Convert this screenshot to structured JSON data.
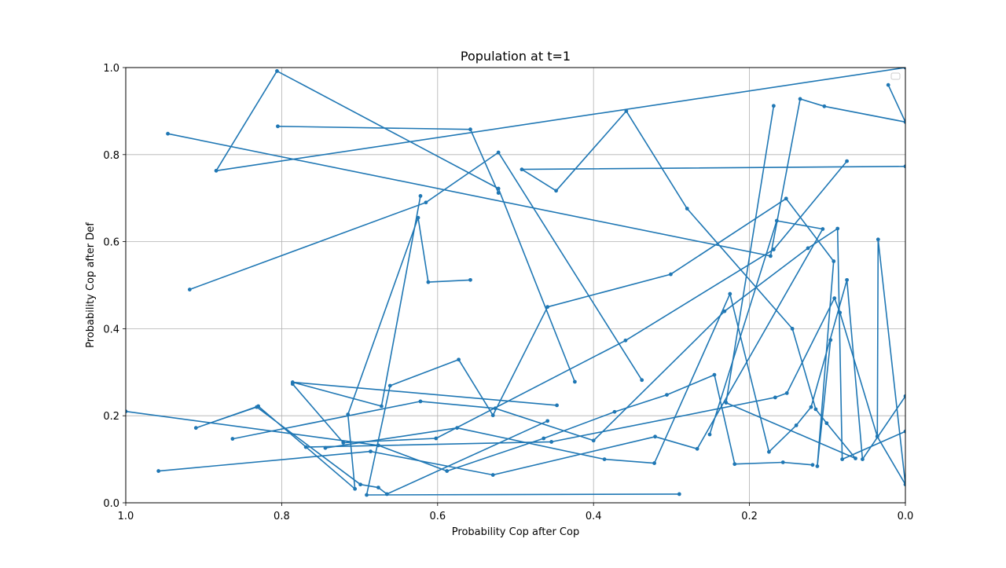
{
  "chart_data": {
    "type": "line",
    "title": "Population at t=1",
    "xlabel": "Probability Cop after Cop",
    "ylabel": "Probability Cop after Def",
    "xlim": [
      1.0,
      0.0
    ],
    "ylim": [
      0.0,
      1.0
    ],
    "x_inverted": true,
    "xticks": [
      1.0,
      0.8,
      0.6,
      0.4,
      0.2,
      0.0
    ],
    "yticks": [
      0.0,
      0.2,
      0.4,
      0.6,
      0.8,
      1.0
    ],
    "xtick_labels": [
      "1.0",
      "0.8",
      "0.6",
      "0.4",
      "0.2",
      "0.0"
    ],
    "ytick_labels": [
      "0.0",
      "0.2",
      "0.4",
      "0.6",
      "0.8",
      "1.0"
    ],
    "grid": true,
    "legend": "upper right (empty)",
    "series_color": "#1f77b4",
    "marker": "dot",
    "series": [
      {
        "x": [
          0.805,
          0.558,
          0.522
        ],
        "y": [
          0.865,
          0.858,
          0.712
        ]
      },
      {
        "x": [
          0.946,
          0.173,
          0.135,
          0.104,
          0.0,
          0.022
        ],
        "y": [
          0.848,
          0.567,
          0.928,
          0.911,
          0.875,
          0.96
        ]
      },
      {
        "x": [
          0.0,
          0.884,
          0.806,
          0.522,
          0.424
        ],
        "y": [
          1.0,
          0.763,
          0.992,
          0.722,
          0.278
        ]
      },
      {
        "x": [
          0.0,
          0.492,
          0.448,
          0.358,
          0.28,
          0.145,
          0.115,
          0.101,
          0.064,
          0.23,
          0.169
        ],
        "y": [
          0.773,
          0.766,
          0.717,
          0.9,
          0.676,
          0.4,
          0.215,
          0.183,
          0.102,
          0.23,
          0.912
        ]
      },
      {
        "x": [
          0.918,
          0.615,
          0.522,
          0.338
        ],
        "y": [
          0.49,
          0.69,
          0.805,
          0.282
        ]
      },
      {
        "x": [
          0.622,
          0.672,
          0.786,
          0.447
        ],
        "y": [
          0.705,
          0.222,
          0.277,
          0.224
        ]
      },
      {
        "x": [
          0.786,
          0.721,
          0.602,
          0.359,
          0.169,
          0.075
        ],
        "y": [
          0.273,
          0.138,
          0.148,
          0.373,
          0.582,
          0.785
        ]
      },
      {
        "x": [
          0.558,
          0.612,
          0.625,
          0.715,
          0.706,
          0.83,
          0.91,
          0.832,
          0.699,
          0.676,
          0.665,
          0.459
        ],
        "y": [
          0.512,
          0.507,
          0.655,
          0.203,
          0.032,
          0.222,
          0.172,
          0.22,
          0.042,
          0.035,
          0.02,
          0.188
        ]
      },
      {
        "x": [
          1.0,
          0.676,
          0.588,
          0.464,
          0.373,
          0.306,
          0.245,
          0.219,
          0.157,
          0.119
        ],
        "y": [
          0.21,
          0.132,
          0.073,
          0.148,
          0.209,
          0.248,
          0.294,
          0.089,
          0.093,
          0.087
        ]
      },
      {
        "x": [
          0.958,
          0.686,
          0.529,
          0.321,
          0.267,
          0.106,
          0.165,
          0.251
        ],
        "y": [
          0.073,
          0.118,
          0.064,
          0.152,
          0.124,
          0.629,
          0.648,
          0.157
        ]
      },
      {
        "x": [
          0.769,
          0.454,
          0.167,
          0.152,
          0.091,
          0.084,
          0.036,
          0.0,
          0.035,
          0.036
        ],
        "y": [
          0.128,
          0.14,
          0.242,
          0.252,
          0.47,
          0.437,
          0.152,
          0.042,
          0.605,
          0.153
        ]
      },
      {
        "x": [
          0.29,
          0.691,
          0.661,
          0.573,
          0.529,
          0.459,
          0.301,
          0.153,
          0.092,
          0.113,
          0.096
        ],
        "y": [
          0.02,
          0.018,
          0.269,
          0.329,
          0.201,
          0.45,
          0.525,
          0.699,
          0.555,
          0.084,
          0.374
        ]
      },
      {
        "x": [
          0.863,
          0.622,
          0.526,
          0.4,
          0.232,
          0.125,
          0.087,
          0.081,
          0.0
        ],
        "y": [
          0.147,
          0.233,
          0.217,
          0.143,
          0.44,
          0.585,
          0.63,
          0.1,
          0.164
        ]
      },
      {
        "x": [
          0.744,
          0.575,
          0.386,
          0.322,
          0.225,
          0.175,
          0.14,
          0.121,
          0.075,
          0.055,
          0.0
        ],
        "y": [
          0.126,
          0.172,
          0.1,
          0.091,
          0.48,
          0.117,
          0.178,
          0.22,
          0.512,
          0.1,
          0.245
        ]
      }
    ]
  }
}
